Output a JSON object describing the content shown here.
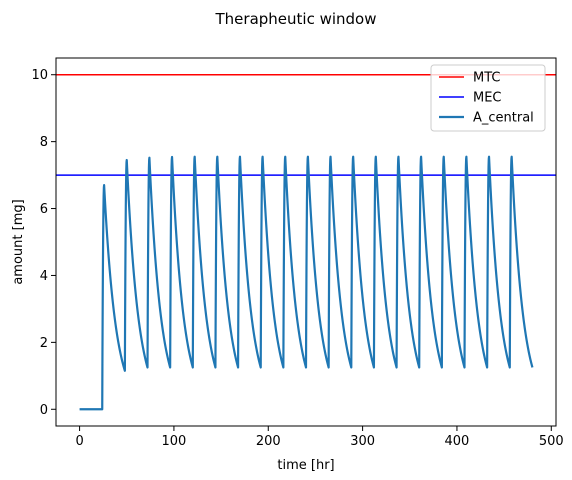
{
  "chart_data": {
    "type": "line",
    "title": "Therapheutic window",
    "xlabel": "time [hr]",
    "ylabel": "amount [mg]",
    "xlim": [
      -25,
      505
    ],
    "ylim": [
      -0.5,
      10.5
    ],
    "xticks": [
      0,
      100,
      200,
      300,
      400,
      500
    ],
    "yticks": [
      0,
      2,
      4,
      6,
      8,
      10
    ],
    "xtick_labels": [
      "0",
      "100",
      "200",
      "300",
      "400",
      "500"
    ],
    "ytick_labels": [
      "0",
      "2",
      "4",
      "6",
      "8",
      "10"
    ],
    "grid": false,
    "legend_position": "top-right",
    "series": [
      {
        "name": "MTC",
        "color": "#ff0000",
        "kind": "hline",
        "y": 10
      },
      {
        "name": "MEC",
        "color": "#0000ff",
        "kind": "hline",
        "y": 7
      },
      {
        "name": "A_central",
        "color": "#1f77b4",
        "kind": "dosing",
        "first_dose": 24,
        "interval": 24,
        "end": 480,
        "dose_peaks": [
          6.7,
          7.45,
          7.52,
          7.54,
          7.55,
          7.55,
          7.55,
          7.55,
          7.55,
          7.55,
          7.55,
          7.55,
          7.55,
          7.55,
          7.55,
          7.55,
          7.55,
          7.55,
          7.55
        ],
        "dose_troughs": [
          1.15,
          1.25,
          1.25,
          1.25,
          1.25,
          1.25,
          1.25,
          1.25,
          1.25,
          1.25,
          1.25,
          1.25,
          1.25,
          1.25,
          1.25,
          1.25,
          1.25,
          1.25,
          1.25
        ],
        "peak_time_after_dose": 2
      }
    ]
  }
}
